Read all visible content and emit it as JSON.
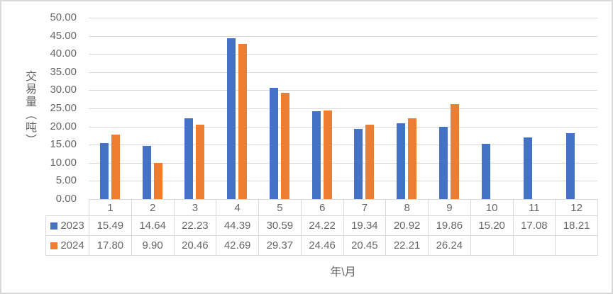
{
  "chart_data": {
    "type": "bar",
    "title": "",
    "xlabel": "年\\月",
    "ylabel": "交易量（吨）",
    "ylim": [
      0,
      50
    ],
    "ytick_step": 5,
    "ytick_format_decimals": 2,
    "grid": true,
    "legend_position": "table-rows-left",
    "categories": [
      "1",
      "2",
      "3",
      "4",
      "5",
      "6",
      "7",
      "8",
      "9",
      "10",
      "11",
      "12"
    ],
    "series": [
      {
        "name": "2023",
        "color": "#4472C4",
        "values": [
          15.49,
          14.64,
          22.23,
          44.39,
          30.59,
          24.22,
          19.34,
          20.92,
          19.86,
          15.2,
          17.08,
          18.21
        ]
      },
      {
        "name": "2024",
        "color": "#ED7D31",
        "values": [
          17.8,
          9.9,
          20.46,
          42.69,
          29.37,
          24.46,
          20.45,
          22.21,
          26.24,
          null,
          null,
          null
        ]
      }
    ]
  },
  "colors": {
    "gridline": "#d9d9d9",
    "table_border": "#d9d9d9",
    "frame_border": "#d9d9d9",
    "text": "#666666",
    "background": "#ffffff"
  }
}
